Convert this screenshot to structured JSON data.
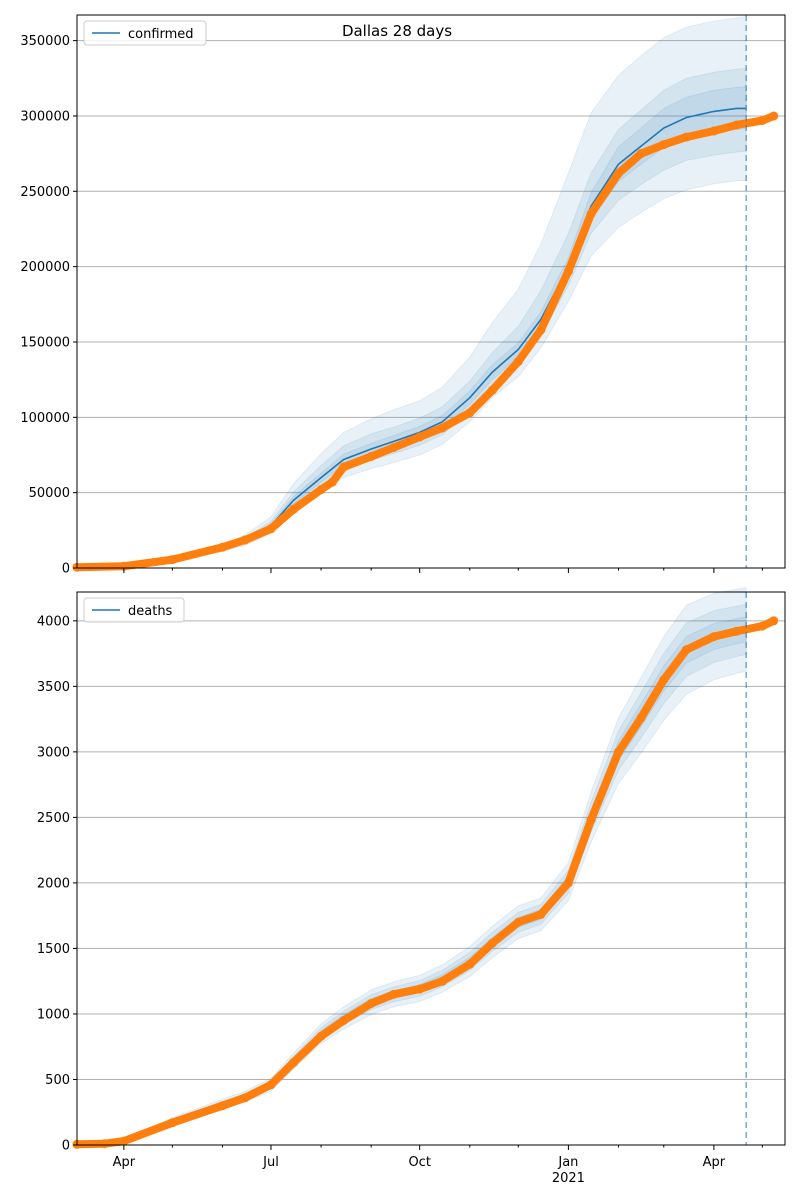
{
  "figure": {
    "title": "Dallas 28 days"
  },
  "colors": {
    "model_line": "#1f77b4",
    "observed": "#ff7f0e",
    "band": "#1f77b4",
    "grid": "#b0b0b0",
    "forecast_marker": "#1f77b4"
  },
  "chart_data": [
    {
      "type": "line",
      "title": "Dallas 28 days",
      "legend": {
        "entries": [
          "confirmed"
        ],
        "placement": "top-left"
      },
      "xlim": [
        "2020-03-03",
        "2021-05-15"
      ],
      "ylim": [
        0,
        367000
      ],
      "grid": {
        "y": true,
        "x": false
      },
      "x_ticks": [
        {
          "date": "2020-04-01",
          "label": "Apr"
        },
        {
          "date": "2020-07-01",
          "label": "Jul"
        },
        {
          "date": "2020-10-01",
          "label": "Oct"
        },
        {
          "date": "2021-01-01",
          "label": "Jan",
          "sublabel": "2021"
        },
        {
          "date": "2021-04-01",
          "label": "Apr"
        }
      ],
      "y_ticks": [
        0,
        50000,
        100000,
        150000,
        200000,
        250000,
        300000,
        350000
      ],
      "forecast_date": "2021-04-21",
      "series": [
        {
          "name": "confirmed",
          "kind": "model",
          "x": [
            "2020-03-03",
            "2020-04-01",
            "2020-05-01",
            "2020-06-01",
            "2020-06-15",
            "2020-07-01",
            "2020-07-15",
            "2020-08-01",
            "2020-08-15",
            "2020-09-01",
            "2020-09-15",
            "2020-10-01",
            "2020-10-15",
            "2020-11-01",
            "2020-11-15",
            "2020-12-01",
            "2020-12-15",
            "2021-01-01",
            "2021-01-15",
            "2021-02-01",
            "2021-02-15",
            "2021-03-01",
            "2021-03-15",
            "2021-04-01",
            "2021-04-15",
            "2021-04-21"
          ],
          "y": [
            200,
            500,
            5000,
            13000,
            18000,
            28000,
            45000,
            60000,
            72000,
            79000,
            84000,
            90000,
            97000,
            113000,
            130000,
            145000,
            165000,
            200000,
            240000,
            268000,
            280000,
            292000,
            299000,
            303000,
            305000,
            305000
          ],
          "bands": [
            {
              "lower": [
                150,
                380,
                4200,
                11000,
                15000,
                23000,
                36000,
                50000,
                60000,
                66000,
                70000,
                75000,
                82000,
                97000,
                113000,
                127000,
                146000,
                177000,
                207000,
                226000,
                236000,
                245000,
                251000,
                255000,
                257000,
                257000
              ],
              "upper": [
                250,
                620,
                6000,
                15500,
                22000,
                34000,
                56000,
                76000,
                90000,
                99000,
                105000,
                111000,
                120000,
                140000,
                163000,
                185000,
                215000,
                262000,
                302000,
                327000,
                340000,
                352000,
                359000,
                363000,
                365000,
                366000
              ]
            },
            {
              "lower": [
                170,
                430,
                4500,
                12000,
                16300,
                25200,
                40000,
                54000,
                65000,
                71500,
                76000,
                81500,
                88500,
                104000,
                120000,
                135500,
                154000,
                187500,
                222000,
                244000,
                254500,
                264000,
                270500,
                274000,
                276000,
                276500
              ],
              "upper": [
                230,
                570,
                5500,
                14500,
                20000,
                31000,
                50500,
                68000,
                81000,
                89000,
                93500,
                99500,
                107000,
                124000,
                143000,
                160500,
                184000,
                222000,
                262000,
                291000,
                304000,
                317000,
                325000,
                329000,
                331000,
                331500
              ]
            },
            {
              "lower": [
                185,
                465,
                4750,
                12500,
                17100,
                26500,
                42500,
                57000,
                68500,
                75300,
                80000,
                86000,
                92800,
                108500,
                125000,
                140500,
                160000,
                194000,
                231000,
                256500,
                268000,
                279000,
                285500,
                289000,
                291000,
                291500
              ],
              "upper": [
                215,
                535,
                5250,
                13500,
                18900,
                29500,
                47500,
                63000,
                75500,
                82700,
                88000,
                94000,
                101200,
                117500,
                135000,
                149500,
                170000,
                206000,
                249000,
                279500,
                292000,
                305000,
                312500,
                317000,
                319000,
                319500
              ]
            }
          ]
        },
        {
          "name": "",
          "kind": "observed",
          "x": [
            "2020-03-03",
            "2020-04-01",
            "2020-05-01",
            "2020-06-01",
            "2020-06-15",
            "2020-07-01",
            "2020-07-15",
            "2020-08-01",
            "2020-08-08",
            "2020-08-15",
            "2020-09-01",
            "2020-09-15",
            "2020-10-01",
            "2020-10-15",
            "2020-11-01",
            "2020-11-15",
            "2020-12-01",
            "2020-12-15",
            "2021-01-01",
            "2021-01-15",
            "2021-02-01",
            "2021-02-15",
            "2021-03-01",
            "2021-03-15",
            "2021-04-01",
            "2021-04-15",
            "2021-05-01",
            "2021-05-08"
          ],
          "y": [
            500,
            1200,
            5600,
            13800,
            18600,
            26000,
            39000,
            52000,
            57000,
            67000,
            74000,
            80000,
            87000,
            93000,
            103000,
            118000,
            137000,
            158000,
            197000,
            235000,
            262000,
            275000,
            281000,
            286000,
            290000,
            294000,
            297000,
            300000
          ]
        }
      ]
    },
    {
      "type": "line",
      "title": "",
      "legend": {
        "entries": [
          "deaths"
        ],
        "placement": "top-left"
      },
      "xlim": [
        "2020-03-03",
        "2021-05-15"
      ],
      "ylim": [
        0,
        4220
      ],
      "grid": {
        "y": true,
        "x": false
      },
      "x_ticks": [
        {
          "date": "2020-04-01",
          "label": "Apr"
        },
        {
          "date": "2020-07-01",
          "label": "Jul"
        },
        {
          "date": "2020-10-01",
          "label": "Oct"
        },
        {
          "date": "2021-01-01",
          "label": "Jan",
          "sublabel": "2021"
        },
        {
          "date": "2021-04-01",
          "label": "Apr"
        }
      ],
      "y_ticks": [
        0,
        500,
        1000,
        1500,
        2000,
        2500,
        3000,
        3500,
        4000
      ],
      "forecast_date": "2021-04-21",
      "series": [
        {
          "name": "deaths",
          "kind": "model",
          "x": [
            "2020-03-03",
            "2020-04-01",
            "2020-05-01",
            "2020-06-01",
            "2020-06-15",
            "2020-07-01",
            "2020-07-15",
            "2020-08-01",
            "2020-08-15",
            "2020-09-01",
            "2020-09-15",
            "2020-10-01",
            "2020-10-15",
            "2020-11-01",
            "2020-11-15",
            "2020-12-01",
            "2020-12-15",
            "2021-01-01",
            "2021-01-15",
            "2021-02-01",
            "2021-02-15",
            "2021-03-01",
            "2021-03-15",
            "2021-04-01",
            "2021-04-15",
            "2021-04-21"
          ],
          "y": [
            5,
            30,
            180,
            310,
            370,
            460,
            640,
            850,
            970,
            1090,
            1150,
            1195,
            1270,
            1400,
            1550,
            1700,
            1760,
            2010,
            2500,
            3010,
            3280,
            3560,
            3780,
            3880,
            3920,
            3935
          ],
          "bands": [
            {
              "lower": [
                3,
                24,
                150,
                270,
                330,
                410,
                580,
                775,
                885,
                995,
                1055,
                1095,
                1165,
                1285,
                1430,
                1575,
                1635,
                1865,
                2310,
                2760,
                2990,
                3240,
                3440,
                3550,
                3600,
                3615
              ],
              "upper": [
                7,
                36,
                210,
                350,
                410,
                510,
                700,
                925,
                1055,
                1185,
                1245,
                1295,
                1375,
                1515,
                1670,
                1825,
                1885,
                2155,
                2690,
                3260,
                3570,
                3880,
                4120,
                4210,
                4240,
                4255
              ]
            },
            {
              "lower": [
                4,
                26,
                162,
                286,
                346,
                430,
                604,
                805,
                919,
                1033,
                1093,
                1135,
                1207,
                1331,
                1478,
                1625,
                1685,
                1923,
                2386,
                2860,
                3106,
                3368,
                3576,
                3682,
                3728,
                3743
              ],
              "upper": [
                6,
                34,
                198,
                334,
                394,
                490,
                676,
                895,
                1021,
                1147,
                1207,
                1255,
                1333,
                1469,
                1622,
                1775,
                1835,
                2097,
                2614,
                3160,
                3454,
                3752,
                3984,
                4078,
                4112,
                4127
              ]
            },
            {
              "lower": [
                4.5,
                28,
                171,
                298,
                358,
                445,
                622,
                828,
                945,
                1062,
                1122,
                1165,
                1239,
                1366,
                1514,
                1662,
                1722,
                1966,
                2443,
                2935,
                3193,
                3464,
                3678,
                3781,
                3824,
                3839
              ],
              "upper": [
                5.5,
                32,
                189,
                322,
                382,
                475,
                658,
                872,
                995,
                1118,
                1178,
                1225,
                1301,
                1434,
                1586,
                1738,
                1798,
                2054,
                2557,
                3085,
                3367,
                3656,
                3882,
                3979,
                4016,
                4031
              ]
            }
          ]
        },
        {
          "name": "",
          "kind": "observed",
          "x": [
            "2020-03-03",
            "2020-03-20",
            "2020-04-01",
            "2020-05-01",
            "2020-06-01",
            "2020-06-15",
            "2020-07-01",
            "2020-07-15",
            "2020-08-01",
            "2020-08-15",
            "2020-09-01",
            "2020-09-15",
            "2020-10-01",
            "2020-10-15",
            "2020-11-01",
            "2020-11-15",
            "2020-12-01",
            "2020-12-15",
            "2021-01-01",
            "2021-01-15",
            "2021-02-01",
            "2021-02-15",
            "2021-03-01",
            "2021-03-15",
            "2021-04-01",
            "2021-04-15",
            "2021-05-01",
            "2021-05-08"
          ],
          "y": [
            5,
            10,
            30,
            170,
            300,
            360,
            460,
            630,
            830,
            950,
            1080,
            1150,
            1190,
            1250,
            1380,
            1540,
            1700,
            1760,
            2000,
            2480,
            3000,
            3260,
            3550,
            3780,
            3880,
            3920,
            3960,
            4000
          ]
        }
      ]
    }
  ]
}
